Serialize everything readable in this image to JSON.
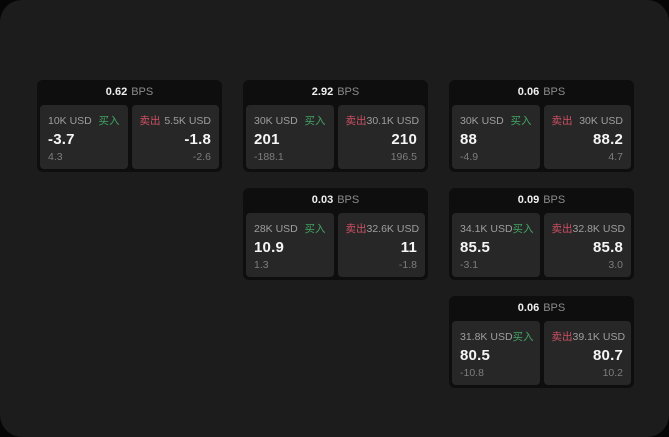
{
  "labels": {
    "bps": "BPS",
    "buy": "买入",
    "sell": "卖出"
  },
  "colors": {
    "buy-color": "#42a564",
    "sell-color": "#cf5063"
  },
  "cards": [
    {
      "bps": "0.62",
      "row": 1,
      "col": 1,
      "buy": {
        "amount": "10K USD",
        "value": "-3.7",
        "delta": "4.3"
      },
      "sell": {
        "amount": "5.5K USD",
        "value": "-1.8",
        "delta": "-2.6"
      }
    },
    {
      "bps": "2.92",
      "row": 1,
      "col": 2,
      "buy": {
        "amount": "30K USD",
        "value": "201",
        "delta": "-188.1"
      },
      "sell": {
        "amount": "30.1K USD",
        "value": "210",
        "delta": "196.5"
      }
    },
    {
      "bps": "0.06",
      "row": 1,
      "col": 3,
      "buy": {
        "amount": "30K USD",
        "value": "88",
        "delta": "-4.9"
      },
      "sell": {
        "amount": "30K USD",
        "value": "88.2",
        "delta": "4.7"
      }
    },
    {
      "bps": "0.03",
      "row": 2,
      "col": 2,
      "buy": {
        "amount": "28K USD",
        "value": "10.9",
        "delta": "1.3"
      },
      "sell": {
        "amount": "32.6K USD",
        "value": "11",
        "delta": "-1.8"
      }
    },
    {
      "bps": "0.09",
      "row": 2,
      "col": 3,
      "buy": {
        "amount": "34.1K USD",
        "value": "85.5",
        "delta": "-3.1"
      },
      "sell": {
        "amount": "32.8K USD",
        "value": "85.8",
        "delta": "3.0"
      }
    },
    {
      "bps": "0.06",
      "row": 3,
      "col": 3,
      "buy": {
        "amount": "31.8K USD",
        "value": "80.5",
        "delta": "-10.8"
      },
      "sell": {
        "amount": "39.1K USD",
        "value": "80.7",
        "delta": "10.2"
      }
    }
  ]
}
